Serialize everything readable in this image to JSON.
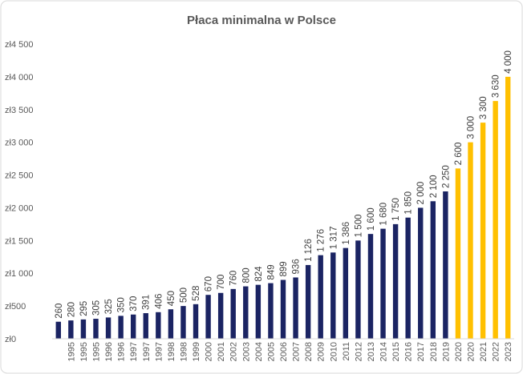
{
  "chart_data": {
    "type": "bar",
    "title": "Płaca minimalna w Polsce",
    "categories": [
      null,
      "1995",
      "1995",
      "1995",
      "1996",
      "1996",
      "1997",
      "1997",
      "1997",
      "1998",
      "1998",
      "1999",
      "2000",
      "2001",
      "2002",
      "2003",
      "2004",
      "2005",
      "2006",
      "2007",
      "2008",
      "2009",
      "2010",
      "2011",
      "2012",
      "2013",
      "2014",
      "2015",
      "2016",
      "2017",
      "2018",
      "2019",
      "2020",
      "2020",
      "2021",
      "2022",
      "2023"
    ],
    "values": [
      260,
      280,
      295,
      305,
      325,
      350,
      370,
      391,
      406,
      450,
      500,
      528,
      670,
      700,
      760,
      800,
      824,
      849,
      899,
      936,
      1126,
      1276,
      1317,
      1386,
      1500,
      1600,
      1680,
      1750,
      1850,
      2000,
      2100,
      2250,
      2600,
      3000,
      3300,
      3630,
      4000
    ],
    "value_labels": [
      "260",
      "280",
      "295",
      "305",
      "325",
      "350",
      "370",
      "391",
      "406",
      "450",
      "500",
      "528",
      "670",
      "700",
      "760",
      "800",
      "824",
      "849",
      "899",
      "936",
      "1 126",
      "1 276",
      "1 317",
      "1 386",
      "1 500",
      "1 600",
      "1 680",
      "1 750",
      "1 850",
      "2 000",
      "2 100",
      "2 250",
      "2 600",
      "3 000",
      "3 300",
      "3 630",
      "4 000"
    ],
    "colors": [
      "#1b2463",
      "#1b2463",
      "#1b2463",
      "#1b2463",
      "#1b2463",
      "#1b2463",
      "#1b2463",
      "#1b2463",
      "#1b2463",
      "#1b2463",
      "#1b2463",
      "#1b2463",
      "#1b2463",
      "#1b2463",
      "#1b2463",
      "#1b2463",
      "#1b2463",
      "#1b2463",
      "#1b2463",
      "#1b2463",
      "#1b2463",
      "#1b2463",
      "#1b2463",
      "#1b2463",
      "#1b2463",
      "#1b2463",
      "#1b2463",
      "#1b2463",
      "#1b2463",
      "#1b2463",
      "#1b2463",
      "#1b2463",
      "#ffc000",
      "#ffc000",
      "#ffc000",
      "#ffc000",
      "#ffc000"
    ],
    "ylim": [
      0,
      4500
    ],
    "yticks": [
      {
        "value": 0,
        "label": "zł0"
      },
      {
        "value": 500,
        "label": "zł500"
      },
      {
        "value": 1000,
        "label": "zł1 000"
      },
      {
        "value": 1500,
        "label": "zł1 500"
      },
      {
        "value": 2000,
        "label": "zł2 000"
      },
      {
        "value": 2500,
        "label": "zł2 500"
      },
      {
        "value": 3000,
        "label": "zł3 000"
      },
      {
        "value": 3500,
        "label": "zł3 500"
      },
      {
        "value": 4000,
        "label": "zł4 000"
      },
      {
        "value": 4500,
        "label": "zł4 500"
      }
    ],
    "grid": false
  }
}
